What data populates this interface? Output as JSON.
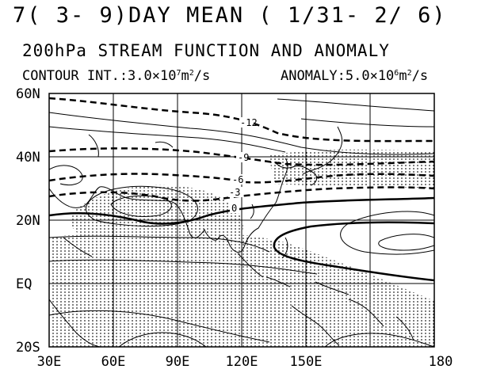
{
  "header": {
    "title": "7( 3- 9)DAY MEAN ( 1/31- 2/ 6)",
    "subtitle": "200hPa STREAM FUNCTION AND ANOMALY",
    "contour_prefix": "CONTOUR INT.:3.0×10",
    "contour_exp": "7",
    "contour_unit": "m",
    "contour_unit_exp": "2",
    "contour_suffix": "/s",
    "anomaly_prefix": "ANOMALY:5.0×10",
    "anomaly_exp": "6",
    "anomaly_unit": "m",
    "anomaly_unit_exp": "2",
    "anomaly_suffix": "/s"
  },
  "axes": {
    "lat_labels": [
      "60N",
      "40N",
      "20N",
      "EQ",
      "20S"
    ],
    "lon_labels": [
      "30E",
      "60E",
      "90E",
      "120E",
      "150E",
      "180"
    ]
  },
  "contour_labels": [
    "-12",
    "-9",
    "-6",
    "-3",
    "0"
  ],
  "colors": {
    "line": "#000000",
    "background": "#ffffff"
  }
}
